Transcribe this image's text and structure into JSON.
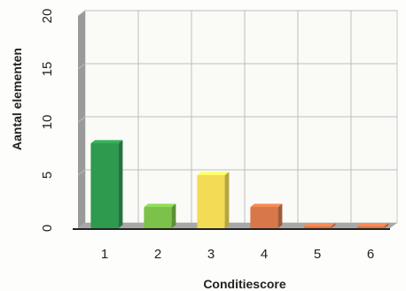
{
  "chart_data": {
    "type": "bar",
    "title": "",
    "xlabel": "Conditiescore",
    "ylabel": "Aantal elementen",
    "categories": [
      "1",
      "2",
      "3",
      "4",
      "5",
      "6"
    ],
    "series": [
      {
        "values": [
          8,
          2,
          5,
          2,
          0,
          0
        ]
      }
    ],
    "colors": [
      "#2e9a4e",
      "#7cc14a",
      "#f2dc55",
      "#d8784a",
      "#d8784a",
      "#d8784a"
    ],
    "ylim": [
      0,
      20
    ],
    "yticks": [
      "0",
      "5",
      "10",
      "15",
      "20"
    ],
    "grid": true,
    "legend": "none"
  }
}
